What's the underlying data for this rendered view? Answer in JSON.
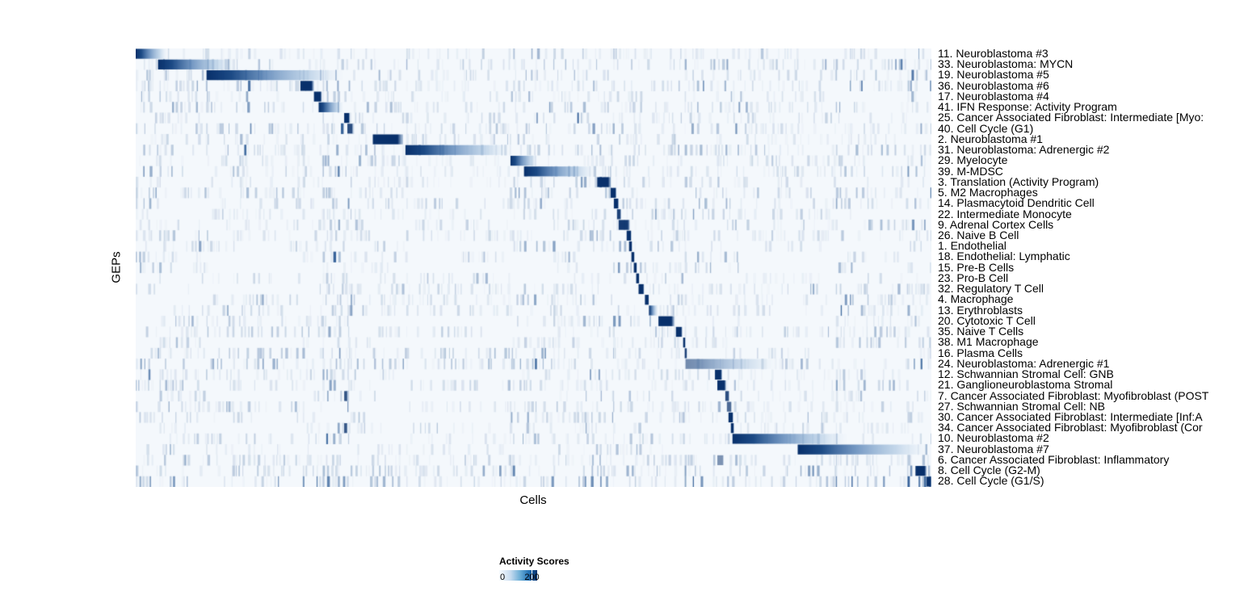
{
  "chart_data": {
    "type": "heatmap",
    "title": "",
    "xlabel": "Cells",
    "ylabel": "GEPs",
    "legend": {
      "title": "Activity Scores",
      "min_label": "0",
      "max_label": "200",
      "min_value": 0,
      "tick_value": 200,
      "tick_position": 0.85,
      "colormap_low": "#f7fbff",
      "colormap_high": "#08306b"
    },
    "n_rows": 41,
    "axis_ranges": {
      "x": "cells (columns, unlabeled)",
      "y": "41 GEPs"
    },
    "grid": false,
    "rows": [
      {
        "label": "11. Neuroblastoma #3",
        "blocks": [
          {
            "start": 0.0,
            "end": 0.04,
            "fade": true
          }
        ]
      },
      {
        "label": "33. Neuroblastoma: MYCN",
        "blocks": [
          {
            "start": 0.028,
            "end": 0.125,
            "fade": true
          }
        ],
        "stripe_boost": 1.2
      },
      {
        "label": "19. Neuroblastoma #5",
        "blocks": [
          {
            "start": 0.089,
            "end": 0.262,
            "fade": true
          }
        ]
      },
      {
        "label": "36. Neuroblastoma #6",
        "blocks": [
          {
            "start": 0.207,
            "end": 0.224
          }
        ],
        "stripe_boost": 1.2
      },
      {
        "label": "17. Neuroblastoma #4",
        "blocks": [
          {
            "start": 0.224,
            "end": 0.234
          }
        ]
      },
      {
        "label": "41. IFN Response: Activity Program",
        "blocks": [
          {
            "start": 0.23,
            "end": 0.261,
            "fade": true
          }
        ],
        "stripe_boost": 1.4
      },
      {
        "label": "25. Cancer Associated Fibroblast: Intermediate [Myo:",
        "blocks": [
          {
            "start": 0.262,
            "end": 0.269
          }
        ]
      },
      {
        "label": "40. Cell Cycle (G1)",
        "blocks": [
          {
            "start": 0.266,
            "end": 0.273,
            "alpha": 0.85
          }
        ],
        "stripe_boost": 1.2
      },
      {
        "label": "2. Neuroblastoma #1",
        "blocks": [
          {
            "start": 0.298,
            "end": 0.336
          }
        ]
      },
      {
        "label": "31. Neuroblastoma: Adrenergic #2",
        "blocks": [
          {
            "start": 0.339,
            "end": 0.472,
            "fade": true
          }
        ],
        "stripe_boost": 1.2
      },
      {
        "label": "29. Myelocyte",
        "blocks": [
          {
            "start": 0.471,
            "end": 0.505,
            "fade": true
          }
        ]
      },
      {
        "label": "39. M-MDSC",
        "blocks": [
          {
            "start": 0.488,
            "end": 0.578,
            "fade": true
          }
        ],
        "stripe_boost": 1.2
      },
      {
        "label": "3. Translation (Activity Program)",
        "blocks": [
          {
            "start": 0.58,
            "end": 0.597
          }
        ]
      },
      {
        "label": "5. M2 Macrophages",
        "blocks": [
          {
            "start": 0.597,
            "end": 0.604
          }
        ]
      },
      {
        "label": "14. Plasmacytoid Dendritic Cell",
        "blocks": [
          {
            "start": 0.601,
            "end": 0.607
          }
        ]
      },
      {
        "label": "22. Intermediate Monocyte",
        "blocks": [
          {
            "start": 0.605,
            "end": 0.61,
            "alpha": 0.9
          }
        ]
      },
      {
        "label": "9. Adrenal Cortex Cells",
        "blocks": [
          {
            "start": 0.607,
            "end": 0.621,
            "alpha": 0.95
          }
        ]
      },
      {
        "label": "26. Naive B Cell",
        "blocks": [
          {
            "start": 0.617,
            "end": 0.623
          }
        ]
      },
      {
        "label": "1. Endothelial",
        "blocks": [
          {
            "start": 0.62,
            "end": 0.624
          }
        ]
      },
      {
        "label": "18. Endothelial: Lymphatic",
        "blocks": [
          {
            "start": 0.623,
            "end": 0.627
          }
        ]
      },
      {
        "label": "15. Pre-B Cells",
        "blocks": [
          {
            "start": 0.626,
            "end": 0.63
          }
        ]
      },
      {
        "label": "23. Pro-B Cell",
        "blocks": [
          {
            "start": 0.629,
            "end": 0.633
          }
        ]
      },
      {
        "label": "32. Regulatory T Cell",
        "blocks": [
          {
            "start": 0.632,
            "end": 0.639
          }
        ]
      },
      {
        "label": "4. Macrophage",
        "blocks": [
          {
            "start": 0.64,
            "end": 0.645
          }
        ]
      },
      {
        "label": "13. Erythroblasts",
        "blocks": [
          {
            "start": 0.645,
            "end": 0.656,
            "fade": true,
            "alpha": 0.95
          }
        ]
      },
      {
        "label": "20. Cytotoxic T Cell",
        "blocks": [
          {
            "start": 0.657,
            "end": 0.677
          }
        ]
      },
      {
        "label": "35. Naive T Cells",
        "blocks": [
          {
            "start": 0.679,
            "end": 0.687
          }
        ]
      },
      {
        "label": "38. M1 Macrophage",
        "blocks": [
          {
            "start": 0.688,
            "end": 0.691
          }
        ]
      },
      {
        "label": "16. Plasma Cells",
        "blocks": [
          {
            "start": 0.69,
            "end": 0.693,
            "alpha": 0.9
          }
        ]
      },
      {
        "label": "24. Neuroblastoma: Adrenergic #1",
        "blocks": [
          {
            "start": 0.691,
            "end": 0.806,
            "fade": true,
            "alpha": 0.55
          }
        ],
        "stripe_boost": 1.3
      },
      {
        "label": "12. Schwannian Stromal Cell: GNB",
        "blocks": [
          {
            "start": 0.728,
            "end": 0.737
          }
        ]
      },
      {
        "label": "21. Ganglioneuroblastoma Stromal",
        "blocks": [
          {
            "start": 0.731,
            "end": 0.742
          }
        ]
      },
      {
        "label": "7. Cancer Associated Fibroblast: Myofibroblast (POST",
        "blocks": [
          {
            "start": 0.741,
            "end": 0.746,
            "alpha": 0.85
          },
          {
            "start": 0.262,
            "end": 0.266,
            "alpha": 0.8
          }
        ]
      },
      {
        "label": "27. Schwannian Stromal Cell: NB",
        "blocks": [
          {
            "start": 0.743,
            "end": 0.749,
            "alpha": 0.7
          }
        ]
      },
      {
        "label": "30. Cancer Associated Fibroblast: Intermediate [Inf:A",
        "blocks": [
          {
            "start": 0.745,
            "end": 0.751
          }
        ]
      },
      {
        "label": "34. Cancer Associated Fibroblast: Myofibroblast (Cor",
        "blocks": [
          {
            "start": 0.748,
            "end": 0.752
          },
          {
            "start": 0.262,
            "end": 0.266,
            "alpha": 0.8
          }
        ]
      },
      {
        "label": "10. Neuroblastoma #2",
        "blocks": [
          {
            "start": 0.75,
            "end": 0.895,
            "fade": true
          }
        ]
      },
      {
        "label": "37. Neuroblastoma #7",
        "blocks": [
          {
            "start": 0.832,
            "end": 0.997,
            "fade": true
          }
        ]
      },
      {
        "label": "6. Cancer Associated Fibroblast: Inflammatory",
        "blocks": [
          {
            "start": 0.731,
            "end": 0.739,
            "alpha": 0.5
          }
        ]
      },
      {
        "label": "8. Cell Cycle (G2-M)",
        "blocks": [
          {
            "start": 0.98,
            "end": 0.994
          }
        ],
        "stripe_boost": 1.6
      },
      {
        "label": "28. Cell Cycle (G1/S)",
        "blocks": [
          {
            "start": 0.994,
            "end": 1.0
          }
        ],
        "stripe_boost": 2.2
      }
    ],
    "stripe_bands": [
      {
        "from": 0.0,
        "to": 0.03,
        "base": 0.5
      },
      {
        "from": 0.03,
        "to": 0.09,
        "base": 0.4
      },
      {
        "from": 0.09,
        "to": 0.21,
        "base": 0.3
      },
      {
        "from": 0.21,
        "to": 0.235,
        "base": 0.35
      },
      {
        "from": 0.235,
        "to": 0.27,
        "base": 0.55
      },
      {
        "from": 0.27,
        "to": 0.3,
        "base": 0.35
      },
      {
        "from": 0.3,
        "to": 0.34,
        "base": 0.3
      },
      {
        "from": 0.34,
        "to": 0.47,
        "base": 0.28
      },
      {
        "from": 0.47,
        "to": 0.525,
        "base": 0.5
      },
      {
        "from": 0.525,
        "to": 0.555,
        "base": 0.3
      },
      {
        "from": 0.555,
        "to": 0.6,
        "base": 0.5
      },
      {
        "from": 0.6,
        "to": 0.64,
        "base": 0.45
      },
      {
        "from": 0.64,
        "to": 0.69,
        "base": 0.3
      },
      {
        "from": 0.69,
        "to": 0.76,
        "base": 0.45
      },
      {
        "from": 0.76,
        "to": 0.88,
        "base": 0.28
      },
      {
        "from": 0.88,
        "to": 0.915,
        "base": 0.45
      },
      {
        "from": 0.915,
        "to": 0.97,
        "base": 0.3
      },
      {
        "from": 0.97,
        "to": 1.0,
        "base": 0.55
      }
    ],
    "heat_colors": {
      "background": "#f4f8fc",
      "stripe": "#174a8a",
      "block_dark": "#08306b"
    }
  }
}
